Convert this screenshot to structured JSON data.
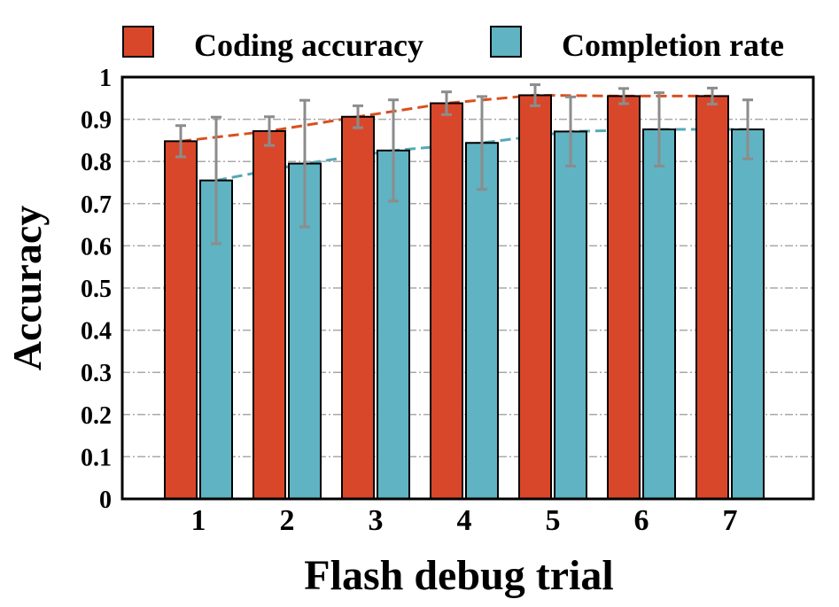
{
  "chart_data": {
    "type": "bar",
    "title": "",
    "xlabel": "Flash debug trial",
    "ylabel": "Accuracy",
    "categories": [
      "1",
      "2",
      "3",
      "4",
      "5",
      "6",
      "7"
    ],
    "ylim": [
      0,
      1
    ],
    "yticks": [
      "0",
      "0.1",
      "0.2",
      "0.3",
      "0.4",
      "0.5",
      "0.6",
      "0.7",
      "0.8",
      "0.9",
      "1"
    ],
    "grid": true,
    "legend_position": "top",
    "trend_lines": true,
    "series": [
      {
        "name": "Coding accuracy",
        "color": "#d9472b",
        "values": [
          0.848,
          0.872,
          0.906,
          0.938,
          0.957,
          0.955,
          0.955
        ],
        "errors": [
          0.037,
          0.034,
          0.026,
          0.027,
          0.025,
          0.018,
          0.019
        ]
      },
      {
        "name": "Completion rate",
        "color": "#5fb3c2",
        "values": [
          0.755,
          0.795,
          0.826,
          0.844,
          0.871,
          0.876,
          0.876
        ],
        "errors": [
          0.15,
          0.15,
          0.12,
          0.11,
          0.082,
          0.087,
          0.07
        ]
      }
    ]
  }
}
